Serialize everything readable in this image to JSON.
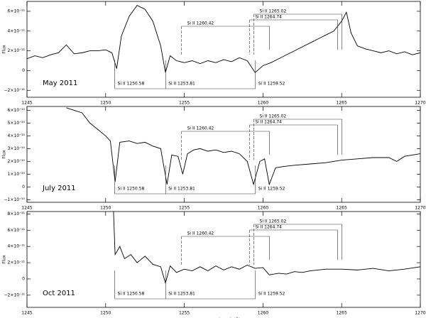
{
  "chart_data": [
    {
      "type": "line",
      "panel_label": "May 2011",
      "ylabel": "Flux",
      "xlim": [
        1245,
        1270
      ],
      "xticks": [
        1245,
        1250,
        1255,
        1260,
        1265,
        1270
      ],
      "ylim": [
        -2.7e-11,
        7e-11
      ],
      "yticks": [
        {
          "value": -2e-11,
          "label": "−2×10⁻¹¹"
        },
        0,
        {
          "value": 2e-11,
          "label": "2×10⁻¹¹"
        },
        {
          "value": 4e-11,
          "label": "4×10⁻¹¹"
        },
        {
          "value": 6e-11,
          "label": "6×10⁻¹¹"
        }
      ],
      "color": "#000000",
      "lower_lines": [
        "Si II 1250.58",
        "Si II 1253.81",
        "Si II 1259.52"
      ],
      "upper_lines": [
        "Si II 1265.02",
        "Si II 1264.74",
        "Si II 1260.42"
      ],
      "x": [
        1245,
        1245.5,
        1246,
        1246.5,
        1247,
        1247.5,
        1248,
        1248.5,
        1249,
        1249.5,
        1250,
        1250.4,
        1250.7,
        1251,
        1251.5,
        1252,
        1252.5,
        1253,
        1253.5,
        1253.8,
        1254.1,
        1254.5,
        1255,
        1255.5,
        1256,
        1256.5,
        1257,
        1257.5,
        1258,
        1258.5,
        1259,
        1259.5,
        1260,
        1260.5,
        1261,
        1261.5,
        1262,
        1262.5,
        1263,
        1263.5,
        1264,
        1264.5,
        1265,
        1265.3,
        1265.6,
        1266,
        1266.5,
        1267,
        1267.5,
        1268,
        1268.5,
        1269,
        1269.5,
        1270
      ],
      "values": [
        1.2e-11,
        1.5e-11,
        1.3e-11,
        1.6e-11,
        1.8e-11,
        2.6e-11,
        1.7e-11,
        1.8e-11,
        2e-11,
        2e-11,
        2.1e-11,
        1.8e-11,
        2e-12,
        3.5e-11,
        5.5e-11,
        6.6e-11,
        6.2e-11,
        5e-11,
        2.5e-11,
        -2e-12,
        1.5e-11,
        1e-11,
        8e-12,
        1e-11,
        7e-12,
        1e-11,
        8e-12,
        1.1e-11,
        9e-12,
        1.3e-11,
        1e-11,
        -2e-12,
        5e-12,
        8e-12,
        1.2e-11,
        1.6e-11,
        2e-11,
        2.4e-11,
        2.8e-11,
        3.2e-11,
        3.6e-11,
        4e-11,
        5e-11,
        5.9e-11,
        3.8e-11,
        2.5e-11,
        2.2e-11,
        2e-11,
        1.8e-11,
        2e-11,
        1.7e-11,
        1.9e-11,
        1.6e-11,
        1.8e-11
      ]
    },
    {
      "type": "line",
      "panel_label": "July 2011",
      "ylabel": "Flux",
      "xlim": [
        1245,
        1270
      ],
      "xticks": [
        1245,
        1250,
        1255,
        1260,
        1265,
        1270
      ],
      "ylim": [
        -1.2e-10,
        6.3e-10
      ],
      "yticks": [
        {
          "value": -1e-10,
          "label": "−1×10⁻¹⁰"
        },
        0,
        {
          "value": 1e-10,
          "label": "1×10⁻¹⁰"
        },
        {
          "value": 2e-10,
          "label": "2×10⁻¹⁰"
        },
        {
          "value": 3e-10,
          "label": "3×10⁻¹⁰"
        },
        {
          "value": 4e-10,
          "label": "4×10⁻¹⁰"
        },
        {
          "value": 5e-10,
          "label": "5×10⁻¹⁰"
        },
        {
          "value": 6e-10,
          "label": "6×10⁻¹⁰"
        }
      ],
      "color": "#000000",
      "lower_lines": [
        "Si II 1250.58",
        "Si II 1253.81",
        "Si II 1259.52"
      ],
      "upper_lines": [
        "Si II 1265.02",
        "Si II 1264.74",
        "Si II 1260.42"
      ],
      "x": [
        1247.5,
        1248,
        1248.5,
        1249,
        1249.5,
        1250,
        1250.3,
        1250.6,
        1250.9,
        1251.5,
        1252,
        1252.5,
        1253,
        1253.5,
        1253.9,
        1254.2,
        1254.6,
        1254.9,
        1255.2,
        1255.6,
        1256,
        1256.5,
        1257,
        1257.5,
        1258,
        1258.5,
        1259,
        1259.4,
        1259.8,
        1260.1,
        1260.4,
        1260.8,
        1261.3,
        1262,
        1263,
        1264,
        1265,
        1266,
        1267,
        1268,
        1268.5,
        1269,
        1270
      ],
      "values": [
        6.2e-10,
        6e-10,
        5.8e-10,
        5e-10,
        4.5e-10,
        4e-10,
        3.6e-10,
        4e-11,
        3.5e-10,
        3.6e-10,
        3.4e-10,
        3.5e-10,
        3.2e-10,
        3e-10,
        2e-11,
        2.5e-10,
        2.4e-10,
        1e-10,
        2.6e-10,
        2.9e-10,
        3e-10,
        2.8e-10,
        2.9e-10,
        2.7e-10,
        2.8e-10,
        2.6e-10,
        2e-10,
        2e-11,
        2e-10,
        2.2e-10,
        2e-11,
        1.5e-10,
        1.6e-10,
        1.7e-10,
        1.8e-10,
        1.9e-10,
        2.1e-10,
        2.2e-10,
        2.3e-10,
        2.3e-10,
        2e-10,
        2.4e-10,
        2.6e-10
      ]
    },
    {
      "type": "line",
      "panel_label": "Oct 2011",
      "ylabel": "Flux",
      "xlabel": "Wavelength (Å)",
      "xlim": [
        1245,
        1270
      ],
      "xticks": [
        1245,
        1250,
        1255,
        1260,
        1265,
        1270
      ],
      "ylim": [
        -3.5e-11,
        8.3e-11
      ],
      "yticks": [
        {
          "value": -2e-11,
          "label": "−2×10⁻¹¹"
        },
        0,
        {
          "value": 2e-11,
          "label": "2×10⁻¹¹"
        },
        {
          "value": 4e-11,
          "label": "4×10⁻¹¹"
        },
        {
          "value": 6e-11,
          "label": "6×10⁻¹¹"
        },
        {
          "value": 8e-11,
          "label": "8×10⁻¹¹"
        }
      ],
      "color": "#000000",
      "lower_lines": [
        "Si II 1250.58",
        "Si II 1253.81",
        "Si II 1259.52"
      ],
      "upper_lines": [
        "Si II 1265.02",
        "Si II 1264.74",
        "Si II 1260.42"
      ],
      "x": [
        1250.5,
        1250.6,
        1250.9,
        1251.2,
        1251.6,
        1252,
        1252.5,
        1253,
        1253.5,
        1253.8,
        1254.1,
        1254.5,
        1255,
        1255.5,
        1256,
        1256.5,
        1257,
        1257.5,
        1258,
        1258.5,
        1259,
        1259.5,
        1260,
        1260.4,
        1261,
        1261.5,
        1262,
        1262.5,
        1263,
        1264,
        1265,
        1266,
        1267,
        1268,
        1269,
        1270
      ],
      "values": [
        8.3e-11,
        3e-11,
        4e-11,
        2.5e-11,
        3e-11,
        2e-11,
        2.8e-11,
        1.8e-11,
        1.5e-11,
        -5e-12,
        1.6e-11,
        8e-12,
        1.2e-11,
        1e-11,
        1.5e-11,
        1e-11,
        1.6e-11,
        1.1e-11,
        1.5e-11,
        1.2e-11,
        1.7e-11,
        1.3e-11,
        1.4e-11,
        5e-12,
        7e-12,
        6e-12,
        9e-12,
        8e-12,
        1e-11,
        1.2e-11,
        1.2e-11,
        1.1e-11,
        1.3e-11,
        1e-11,
        1.2e-11,
        1.5e-11
      ]
    }
  ]
}
